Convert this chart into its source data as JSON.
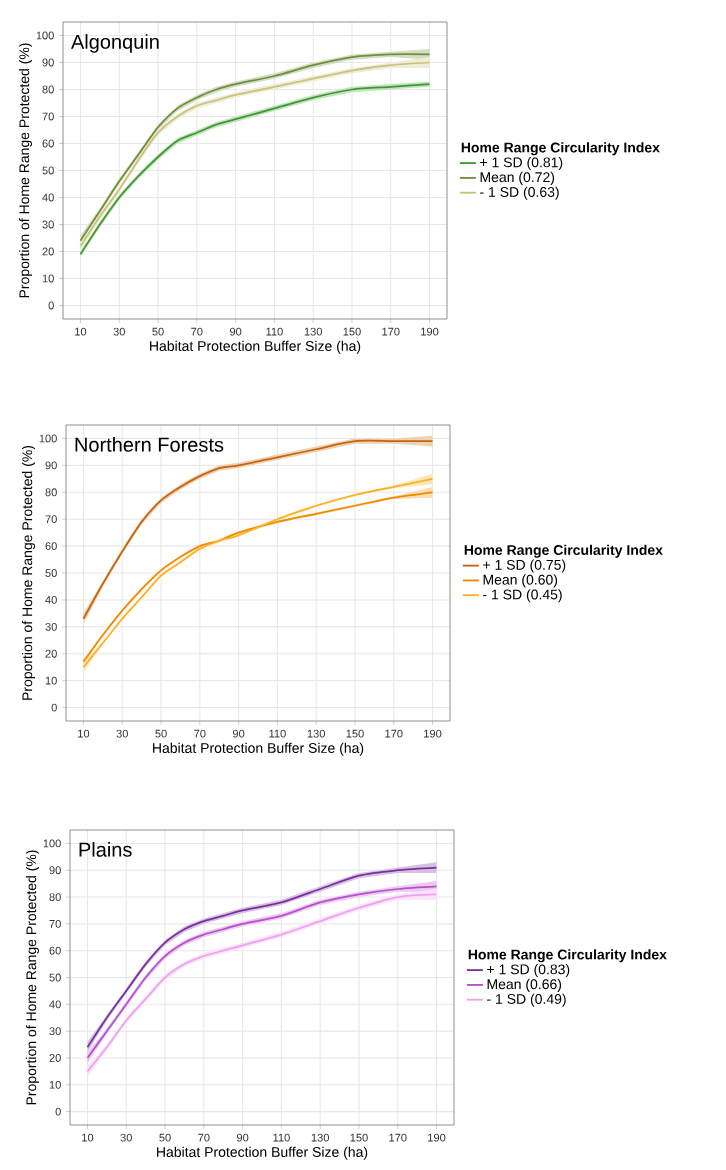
{
  "chart_data": [
    {
      "type": "line",
      "title": "Algonquin",
      "xlabel": "Habitat Protection Buffer Size (ha)",
      "ylabel": "Proportion of Home Range Protected (%)",
      "legend_title": "Home Range Circularity Index",
      "legend": "right",
      "grid": true,
      "xlim": [
        1,
        199
      ],
      "ylim": [
        -5,
        105
      ],
      "xticks": [
        10,
        30,
        50,
        70,
        90,
        110,
        130,
        150,
        170,
        190
      ],
      "yticks": [
        0,
        10,
        20,
        30,
        40,
        50,
        60,
        70,
        80,
        90,
        100
      ],
      "x": [
        10,
        20,
        30,
        40,
        50,
        60,
        70,
        80,
        90,
        110,
        130,
        150,
        170,
        190
      ],
      "series": [
        {
          "name": "+ 1 SD (0.81)",
          "color": "#3c9a2e",
          "values": [
            19,
            30,
            40,
            48,
            55,
            61,
            64,
            67,
            69,
            73,
            77,
            80,
            81,
            82
          ],
          "lower": [
            18,
            29,
            39,
            47,
            54,
            60,
            63,
            66,
            68,
            72,
            76,
            79,
            80,
            81
          ],
          "upper": [
            20,
            31,
            41,
            49,
            56,
            62,
            65,
            68,
            70,
            74,
            78,
            81,
            82,
            83
          ]
        },
        {
          "name": "Mean (0.72)",
          "color": "#6f8f3a",
          "values": [
            24,
            35,
            46,
            56,
            66,
            73,
            77,
            80,
            82,
            85,
            89,
            92,
            93,
            93
          ],
          "lower": [
            22,
            34,
            45,
            55,
            65,
            72,
            76,
            79,
            81,
            84,
            88,
            91,
            92,
            91
          ],
          "upper": [
            26,
            36,
            47,
            57,
            67,
            74,
            78,
            81,
            83,
            86,
            90,
            93,
            94,
            95
          ]
        },
        {
          "name": "- 1 SD (0.63)",
          "color": "#c9c27a",
          "values": [
            22,
            33,
            43,
            54,
            64,
            70,
            74,
            76,
            78,
            81,
            84,
            87,
            89,
            90
          ],
          "lower": [
            20,
            32,
            42,
            53,
            63,
            69,
            73,
            75,
            77,
            80,
            83,
            86,
            88,
            88
          ],
          "upper": [
            24,
            34,
            44,
            55,
            65,
            71,
            75,
            77,
            79,
            82,
            85,
            88,
            90,
            92
          ]
        }
      ]
    },
    {
      "type": "line",
      "title": "Northern Forests",
      "xlabel": "Habitat Protection Buffer Size (ha)",
      "ylabel": "Proportion of Home Range Protected (%)",
      "legend_title": "Home Range Circularity Index",
      "legend": "right",
      "grid": true,
      "xlim": [
        1,
        199
      ],
      "ylim": [
        -5,
        105
      ],
      "xticks": [
        10,
        30,
        50,
        70,
        90,
        110,
        130,
        150,
        170,
        190
      ],
      "yticks": [
        0,
        10,
        20,
        30,
        40,
        50,
        60,
        70,
        80,
        90,
        100
      ],
      "x": [
        10,
        20,
        30,
        40,
        50,
        60,
        70,
        80,
        90,
        110,
        130,
        150,
        170,
        190
      ],
      "series": [
        {
          "name": "+ 1 SD (0.75)",
          "color": "#c8650a",
          "values": [
            33,
            46,
            58,
            69,
            77,
            82,
            86,
            89,
            90,
            93,
            96,
            99,
            99,
            99
          ],
          "lower": [
            31,
            45,
            57,
            68,
            76,
            81,
            85,
            88,
            89,
            92,
            95,
            98,
            98,
            97
          ],
          "upper": [
            35,
            47,
            59,
            70,
            78,
            83,
            87,
            90,
            91,
            94,
            97,
            100,
            100,
            101
          ]
        },
        {
          "name": "Mean (0.60)",
          "color": "#f08a00",
          "values": [
            17,
            27,
            36,
            44,
            51,
            56,
            60,
            62,
            65,
            69,
            72,
            75,
            78,
            80
          ],
          "lower": [
            16,
            26.5,
            35.5,
            43.5,
            50.5,
            55.5,
            59.5,
            61.5,
            64.5,
            68.5,
            71.5,
            74.5,
            77.5,
            78
          ],
          "upper": [
            18,
            27.5,
            36.5,
            44.5,
            51.5,
            56.5,
            60.5,
            62.5,
            65.5,
            69.5,
            72.5,
            75.5,
            78.5,
            82
          ]
        },
        {
          "name": "- 1 SD (0.45)",
          "color": "#ffb020",
          "values": [
            15,
            24,
            33,
            41,
            49,
            54,
            59,
            62,
            64,
            70,
            75,
            79,
            82,
            85
          ],
          "lower": [
            13,
            23.5,
            32.5,
            40.5,
            48.5,
            53.5,
            58.5,
            61.5,
            63.5,
            69.5,
            74.5,
            78.5,
            81.5,
            83
          ],
          "upper": [
            17,
            24.5,
            33.5,
            41.5,
            49.5,
            54.5,
            59.5,
            62.5,
            64.5,
            70.5,
            75.5,
            79.5,
            82.5,
            87
          ]
        }
      ]
    },
    {
      "type": "line",
      "title": "Plains",
      "xlabel": "Habitat Protection Buffer Size (ha)",
      "ylabel": "Proportion of Home Range Protected (%)",
      "legend_title": "Home Range Circularity Index",
      "legend": "right",
      "grid": true,
      "xlim": [
        1,
        199
      ],
      "ylim": [
        -5,
        105
      ],
      "xticks": [
        10,
        30,
        50,
        70,
        90,
        110,
        130,
        150,
        170,
        190
      ],
      "yticks": [
        0,
        10,
        20,
        30,
        40,
        50,
        60,
        70,
        80,
        90,
        100
      ],
      "x": [
        10,
        20,
        30,
        40,
        50,
        60,
        70,
        80,
        90,
        110,
        130,
        150,
        170,
        190
      ],
      "series": [
        {
          "name": "+ 1 SD (0.83)",
          "color": "#7a2fa0",
          "values": [
            24,
            35,
            45,
            55,
            63,
            68,
            71,
            73,
            75,
            78,
            83,
            88,
            90,
            91
          ],
          "lower": [
            22,
            34,
            44,
            54,
            62,
            67,
            70,
            72,
            74,
            77,
            82,
            87,
            89,
            89
          ],
          "upper": [
            26,
            36,
            46,
            56,
            64,
            69,
            72,
            74,
            76,
            79,
            84,
            89,
            91,
            93
          ]
        },
        {
          "name": "Mean (0.66)",
          "color": "#b84fd0",
          "values": [
            20,
            30,
            40,
            50,
            58,
            63,
            66,
            68,
            70,
            73,
            78,
            81,
            83,
            84
          ],
          "lower": [
            18,
            29,
            39,
            49,
            57,
            62,
            65,
            67,
            69,
            72,
            77,
            80,
            82,
            82
          ],
          "upper": [
            22,
            31,
            41,
            51,
            59,
            64,
            67,
            69,
            71,
            74,
            79,
            82,
            84,
            86
          ]
        },
        {
          "name": "- 1 SD (0.49)",
          "color": "#f0a0f0",
          "values": [
            15,
            24,
            34,
            42,
            50,
            55,
            58,
            60,
            62,
            66,
            71,
            76,
            80,
            81
          ],
          "lower": [
            13,
            23,
            33,
            41,
            49,
            54,
            57,
            59,
            61,
            65,
            70,
            75,
            79,
            79
          ],
          "upper": [
            17,
            25,
            35,
            43,
            51,
            56,
            59,
            61,
            63,
            67,
            72,
            77,
            81,
            83
          ]
        }
      ]
    }
  ]
}
